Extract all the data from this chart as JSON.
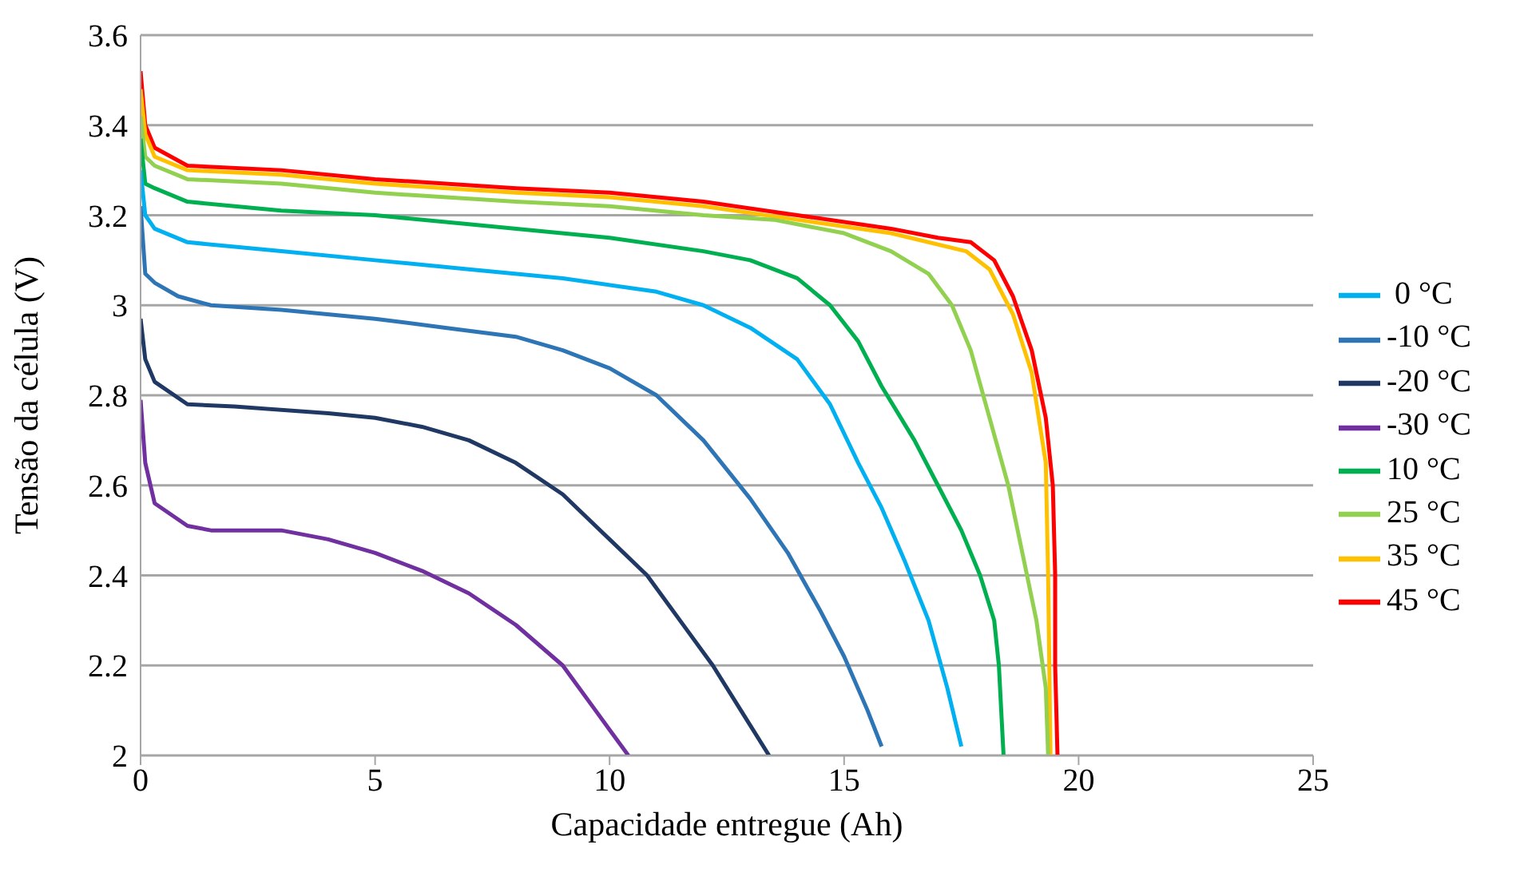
{
  "chart_data": {
    "type": "line",
    "xlabel": "Capacidade entregue (Ah)",
    "ylabel": "Tensão da célula (V)",
    "xlim": [
      0,
      25
    ],
    "xticks": [
      0,
      5,
      10,
      15,
      20,
      25
    ],
    "ylim": [
      2,
      3.6
    ],
    "yticks": [
      2,
      2.2,
      2.4,
      2.6,
      2.8,
      3,
      3.2,
      3.4,
      3.6
    ],
    "grid": "y",
    "legend": "right",
    "marker": "none",
    "line_style": "solid",
    "series": [
      {
        "name": "45 °C",
        "color": "#ff0000",
        "x": [
          0,
          0.1,
          0.3,
          1,
          3,
          5,
          8,
          10,
          12,
          14,
          16,
          17,
          17.7,
          18.2,
          18.6,
          19,
          19.3,
          19.45,
          19.5,
          19.5,
          19.55
        ],
        "values": [
          3.52,
          3.4,
          3.35,
          3.31,
          3.3,
          3.28,
          3.26,
          3.25,
          3.23,
          3.2,
          3.17,
          3.15,
          3.14,
          3.1,
          3.02,
          2.9,
          2.75,
          2.6,
          2.4,
          2.2,
          2.0
        ]
      },
      {
        "name": "35 °C",
        "color": "#ffc000",
        "x": [
          0,
          0.1,
          0.3,
          1,
          3,
          5,
          8,
          10,
          12,
          14,
          16,
          17.6,
          18.1,
          18.6,
          19,
          19.3,
          19.35,
          19.4
        ],
        "values": [
          3.48,
          3.38,
          3.33,
          3.3,
          3.29,
          3.27,
          3.25,
          3.24,
          3.22,
          3.19,
          3.16,
          3.12,
          3.08,
          2.98,
          2.85,
          2.65,
          2.4,
          2.0
        ]
      },
      {
        "name": "25 °C",
        "color": "#92d050",
        "x": [
          0,
          0.1,
          0.3,
          1,
          3,
          5,
          8,
          10,
          12,
          13.5,
          15,
          16,
          16.8,
          17.3,
          17.7,
          18.1,
          18.5,
          18.8,
          19.1,
          19.3,
          19.35
        ],
        "values": [
          3.42,
          3.33,
          3.31,
          3.28,
          3.27,
          3.25,
          3.23,
          3.22,
          3.2,
          3.19,
          3.16,
          3.12,
          3.07,
          3.0,
          2.9,
          2.75,
          2.6,
          2.45,
          2.3,
          2.15,
          2.0
        ]
      },
      {
        "name": "10 °C",
        "color": "#00b050",
        "x": [
          0,
          0.1,
          0.3,
          1,
          3,
          5,
          7,
          10,
          12,
          13,
          14,
          14.7,
          15.3,
          15.8,
          16.5,
          17,
          17.5,
          17.9,
          18.2,
          18.3,
          18.4
        ],
        "values": [
          3.37,
          3.27,
          3.26,
          3.23,
          3.21,
          3.2,
          3.18,
          3.15,
          3.12,
          3.1,
          3.06,
          3.0,
          2.92,
          2.82,
          2.7,
          2.6,
          2.5,
          2.4,
          2.3,
          2.2,
          2.0
        ]
      },
      {
        "name": " 0 °C",
        "color": "#00b0f0",
        "x": [
          0,
          0.1,
          0.3,
          1,
          3,
          5,
          7,
          9,
          11,
          12,
          13,
          14,
          14.7,
          15.3,
          15.8,
          16.3,
          16.8,
          17.2,
          17.5
        ],
        "values": [
          3.3,
          3.2,
          3.17,
          3.14,
          3.12,
          3.1,
          3.08,
          3.06,
          3.03,
          3.0,
          2.95,
          2.88,
          2.78,
          2.65,
          2.55,
          2.43,
          2.3,
          2.15,
          2.02
        ]
      },
      {
        "name": "-10 °C",
        "color": "#2e75b6",
        "x": [
          0,
          0.1,
          0.3,
          0.8,
          1.5,
          3,
          5,
          6.5,
          8,
          9,
          10,
          11,
          12,
          13,
          13.8,
          14.5,
          15,
          15.5,
          15.8
        ],
        "values": [
          3.22,
          3.07,
          3.05,
          3.02,
          3.0,
          2.99,
          2.97,
          2.95,
          2.93,
          2.9,
          2.86,
          2.8,
          2.7,
          2.57,
          2.45,
          2.32,
          2.22,
          2.1,
          2.02
        ]
      },
      {
        "name": "-20 °C",
        "color": "#203864",
        "x": [
          0,
          0.1,
          0.3,
          1,
          2,
          4,
          5,
          6,
          7,
          8,
          9,
          10,
          10.8,
          11.5,
          12.2,
          12.8,
          13.4
        ],
        "values": [
          2.97,
          2.88,
          2.83,
          2.78,
          2.775,
          2.76,
          2.75,
          2.73,
          2.7,
          2.65,
          2.58,
          2.48,
          2.4,
          2.3,
          2.2,
          2.1,
          2.0
        ]
      },
      {
        "name": "-30 °C",
        "color": "#7030a0",
        "x": [
          0,
          0.1,
          0.3,
          1,
          1.5,
          3,
          4,
          5,
          6,
          7,
          8,
          9,
          9.7,
          10.4
        ],
        "values": [
          2.79,
          2.65,
          2.56,
          2.51,
          2.5,
          2.5,
          2.48,
          2.45,
          2.41,
          2.36,
          2.29,
          2.2,
          2.1,
          2.0
        ]
      }
    ]
  }
}
